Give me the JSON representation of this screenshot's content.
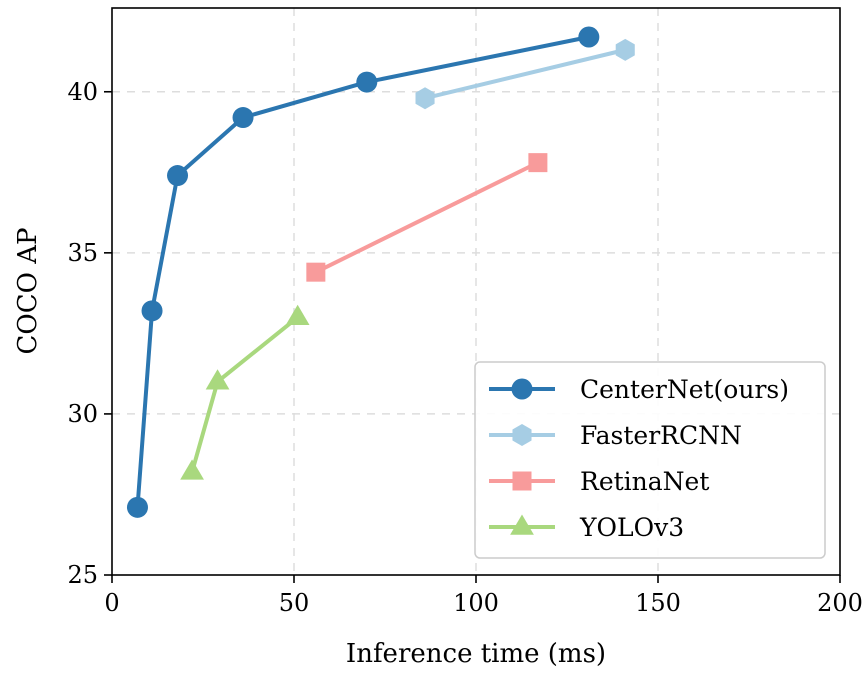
{
  "chart_data": {
    "type": "line",
    "xlabel": "Inference time (ms)",
    "ylabel": "COCO AP",
    "xlim": [
      0,
      200
    ],
    "ylim": [
      25,
      42.6
    ],
    "xticks": [
      0,
      50,
      100,
      150,
      200
    ],
    "yticks": [
      25,
      30,
      35,
      40
    ],
    "grid": true,
    "legend_position": "lower-right",
    "series": [
      {
        "name": "CenterNet(ours)",
        "color": "#2b76b0",
        "marker": "circle",
        "x": [
          7,
          11,
          18,
          36,
          70,
          131
        ],
        "y": [
          27.1,
          33.2,
          37.4,
          39.2,
          40.3,
          41.7
        ]
      },
      {
        "name": "FasterRCNN",
        "color": "#a6cde4",
        "marker": "hexagon",
        "x": [
          86,
          141
        ],
        "y": [
          39.8,
          41.3
        ]
      },
      {
        "name": "RetinaNet",
        "color": "#f89b9b",
        "marker": "square",
        "x": [
          56,
          117
        ],
        "y": [
          34.4,
          37.8
        ]
      },
      {
        "name": "YOLOv3",
        "color": "#a9d87e",
        "marker": "triangle",
        "x": [
          22,
          29,
          51
        ],
        "y": [
          28.2,
          31.0,
          33.0
        ]
      }
    ]
  }
}
